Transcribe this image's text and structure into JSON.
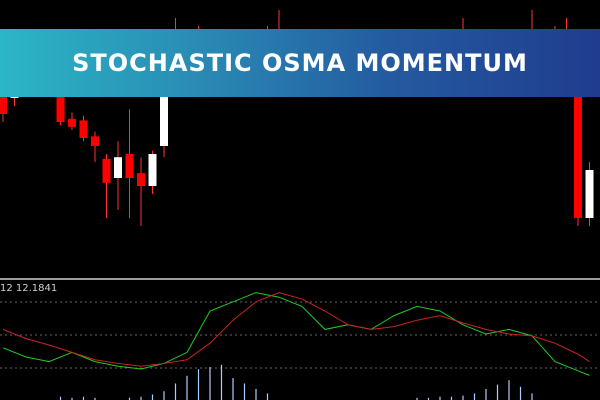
{
  "banner": {
    "title": "STOCHASTIC OSMA MOMENTUM"
  },
  "indicator": {
    "label": "12 12.1841"
  },
  "colors": {
    "background": "#000000",
    "bull_candle": "#ffffff",
    "bear_candle": "#ff0000",
    "wick": "#ff3333",
    "osc_main": "#22cc22",
    "osc_signal": "#cc2222",
    "histogram": "#aaccff",
    "lower_line": "#6666ff",
    "level_line": "#666666",
    "separator": "#cfcfcf"
  },
  "chart_data": [
    {
      "type": "candlestick",
      "ylim": [
        0,
        100
      ],
      "candles": [
        {
          "x": 0,
          "o": 70,
          "c": 35,
          "h": 72,
          "l": 30
        },
        {
          "x": 1,
          "o": 45,
          "c": 65,
          "h": 72,
          "l": 40
        },
        {
          "x": 2,
          "o": 66,
          "c": 67,
          "h": 70,
          "l": 62
        },
        {
          "x": 3,
          "o": 66,
          "c": 58,
          "h": 70,
          "l": 55
        },
        {
          "x": 4,
          "o": 59,
          "c": 60,
          "h": 63,
          "l": 55
        },
        {
          "x": 5,
          "o": 55,
          "c": 30,
          "h": 58,
          "l": 28
        },
        {
          "x": 6,
          "o": 32,
          "c": 27,
          "h": 36,
          "l": 25
        },
        {
          "x": 7,
          "o": 31,
          "c": 20,
          "h": 34,
          "l": 18
        },
        {
          "x": 8,
          "o": 21,
          "c": 15,
          "h": 24,
          "l": 5
        },
        {
          "x": 9,
          "o": 7,
          "c": -8,
          "h": 10,
          "l": -30
        },
        {
          "x": 10,
          "o": -5,
          "c": 8,
          "h": 18,
          "l": -25
        },
        {
          "x": 11,
          "o": 10,
          "c": -5,
          "h": 38,
          "l": -30
        },
        {
          "x": 12,
          "o": -2,
          "c": -10,
          "h": 8,
          "l": -35
        },
        {
          "x": 13,
          "o": -10,
          "c": 10,
          "h": 12,
          "l": -15
        },
        {
          "x": 14,
          "o": 15,
          "c": 62,
          "h": 65,
          "l": 8
        },
        {
          "x": 15,
          "o": 68,
          "c": 80,
          "h": 95,
          "l": 55
        },
        {
          "x": 16,
          "o": 80,
          "c": 80,
          "h": 88,
          "l": 72
        },
        {
          "x": 17,
          "o": 82,
          "c": 78,
          "h": 90,
          "l": 60
        },
        {
          "x": 23,
          "o": 83,
          "c": 78,
          "h": 90,
          "l": 72
        },
        {
          "x": 24,
          "o": 77,
          "c": 82,
          "h": 100,
          "l": 70
        },
        {
          "x": 40,
          "o": 80,
          "c": 78,
          "h": 95,
          "l": 75
        },
        {
          "x": 46,
          "o": 80,
          "c": 80,
          "h": 100,
          "l": 75
        },
        {
          "x": 47,
          "o": 75,
          "c": 78,
          "h": 82,
          "l": 70
        },
        {
          "x": 48,
          "o": 75,
          "c": 72,
          "h": 90,
          "l": 68
        },
        {
          "x": 49,
          "o": 82,
          "c": 75,
          "h": 95,
          "l": 70
        },
        {
          "x": 50,
          "o": 75,
          "c": -30,
          "h": 82,
          "l": -35
        },
        {
          "x": 51,
          "o": -30,
          "c": 0,
          "h": 5,
          "l": -35
        }
      ]
    },
    {
      "type": "line",
      "ylim": [
        0,
        100
      ],
      "x": [
        0,
        2,
        4,
        6,
        8,
        10,
        12,
        14,
        16,
        18,
        20,
        22,
        24,
        26,
        28,
        30,
        32,
        34,
        36,
        38,
        40,
        42,
        44,
        46,
        48,
        50,
        51
      ],
      "series": [
        {
          "name": "",
          "values": [
            35,
            25,
            20,
            30,
            20,
            15,
            12,
            18,
            30,
            75,
            85,
            95,
            90,
            80,
            55,
            60,
            55,
            70,
            80,
            75,
            60,
            50,
            55,
            48,
            20,
            10,
            5
          ]
        },
        {
          "name": "",
          "values": [
            55,
            45,
            38,
            30,
            22,
            18,
            15,
            18,
            22,
            40,
            65,
            85,
            95,
            88,
            75,
            60,
            55,
            58,
            65,
            70,
            62,
            55,
            50,
            48,
            40,
            28,
            20
          ]
        }
      ]
    },
    {
      "type": "bar",
      "ylim": [
        0,
        40
      ],
      "x": [
        5,
        6,
        7,
        8,
        11,
        12,
        13,
        14,
        15,
        16,
        17,
        18,
        19,
        20,
        21,
        22,
        23,
        36,
        37,
        38,
        39,
        40,
        41,
        42,
        43,
        44,
        45,
        46
      ],
      "values": [
        3,
        2,
        3,
        2,
        2,
        3,
        5,
        8,
        15,
        22,
        28,
        30,
        32,
        20,
        15,
        10,
        6,
        2,
        2,
        3,
        3,
        4,
        6,
        10,
        14,
        18,
        12,
        6
      ]
    }
  ]
}
